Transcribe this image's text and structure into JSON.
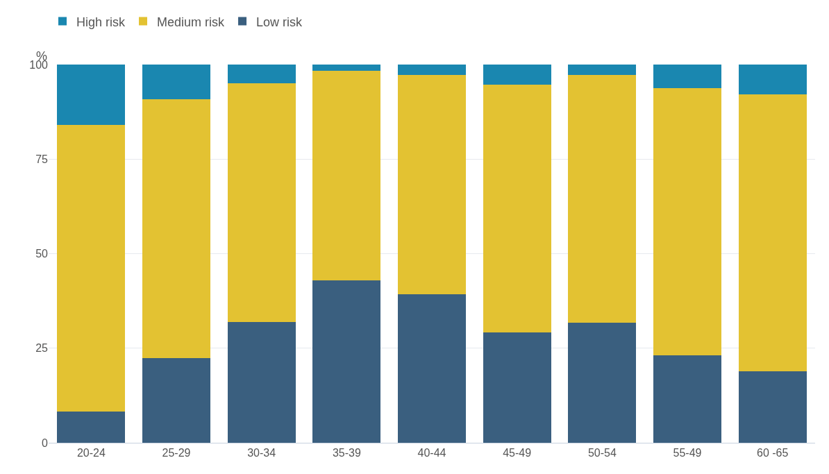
{
  "chart_data": {
    "type": "bar",
    "stacked": true,
    "ylabel": "%",
    "categories": [
      "20-24",
      "25-29",
      "30-34",
      "35-39",
      "40-44",
      "45-49",
      "50-54",
      "55-49",
      "60 -65"
    ],
    "series": [
      {
        "name": "Low risk",
        "color": "#3a5f7f",
        "values": [
          8.3,
          22.4,
          31.9,
          43.0,
          39.3,
          29.1,
          31.7,
          23.1,
          18.9
        ]
      },
      {
        "name": "Medium risk",
        "color": "#e3c232",
        "values": [
          75.7,
          68.4,
          63.2,
          55.4,
          57.9,
          65.6,
          65.5,
          70.7,
          73.2
        ]
      },
      {
        "name": "High risk",
        "color": "#1a87b0",
        "values": [
          16.0,
          9.2,
          4.9,
          1.6,
          2.8,
          5.3,
          2.8,
          6.2,
          7.9
        ]
      }
    ],
    "ylim": [
      0,
      100
    ],
    "yticks": [
      0,
      25,
      50,
      75,
      100
    ],
    "grid": "y",
    "legend": "top left"
  }
}
